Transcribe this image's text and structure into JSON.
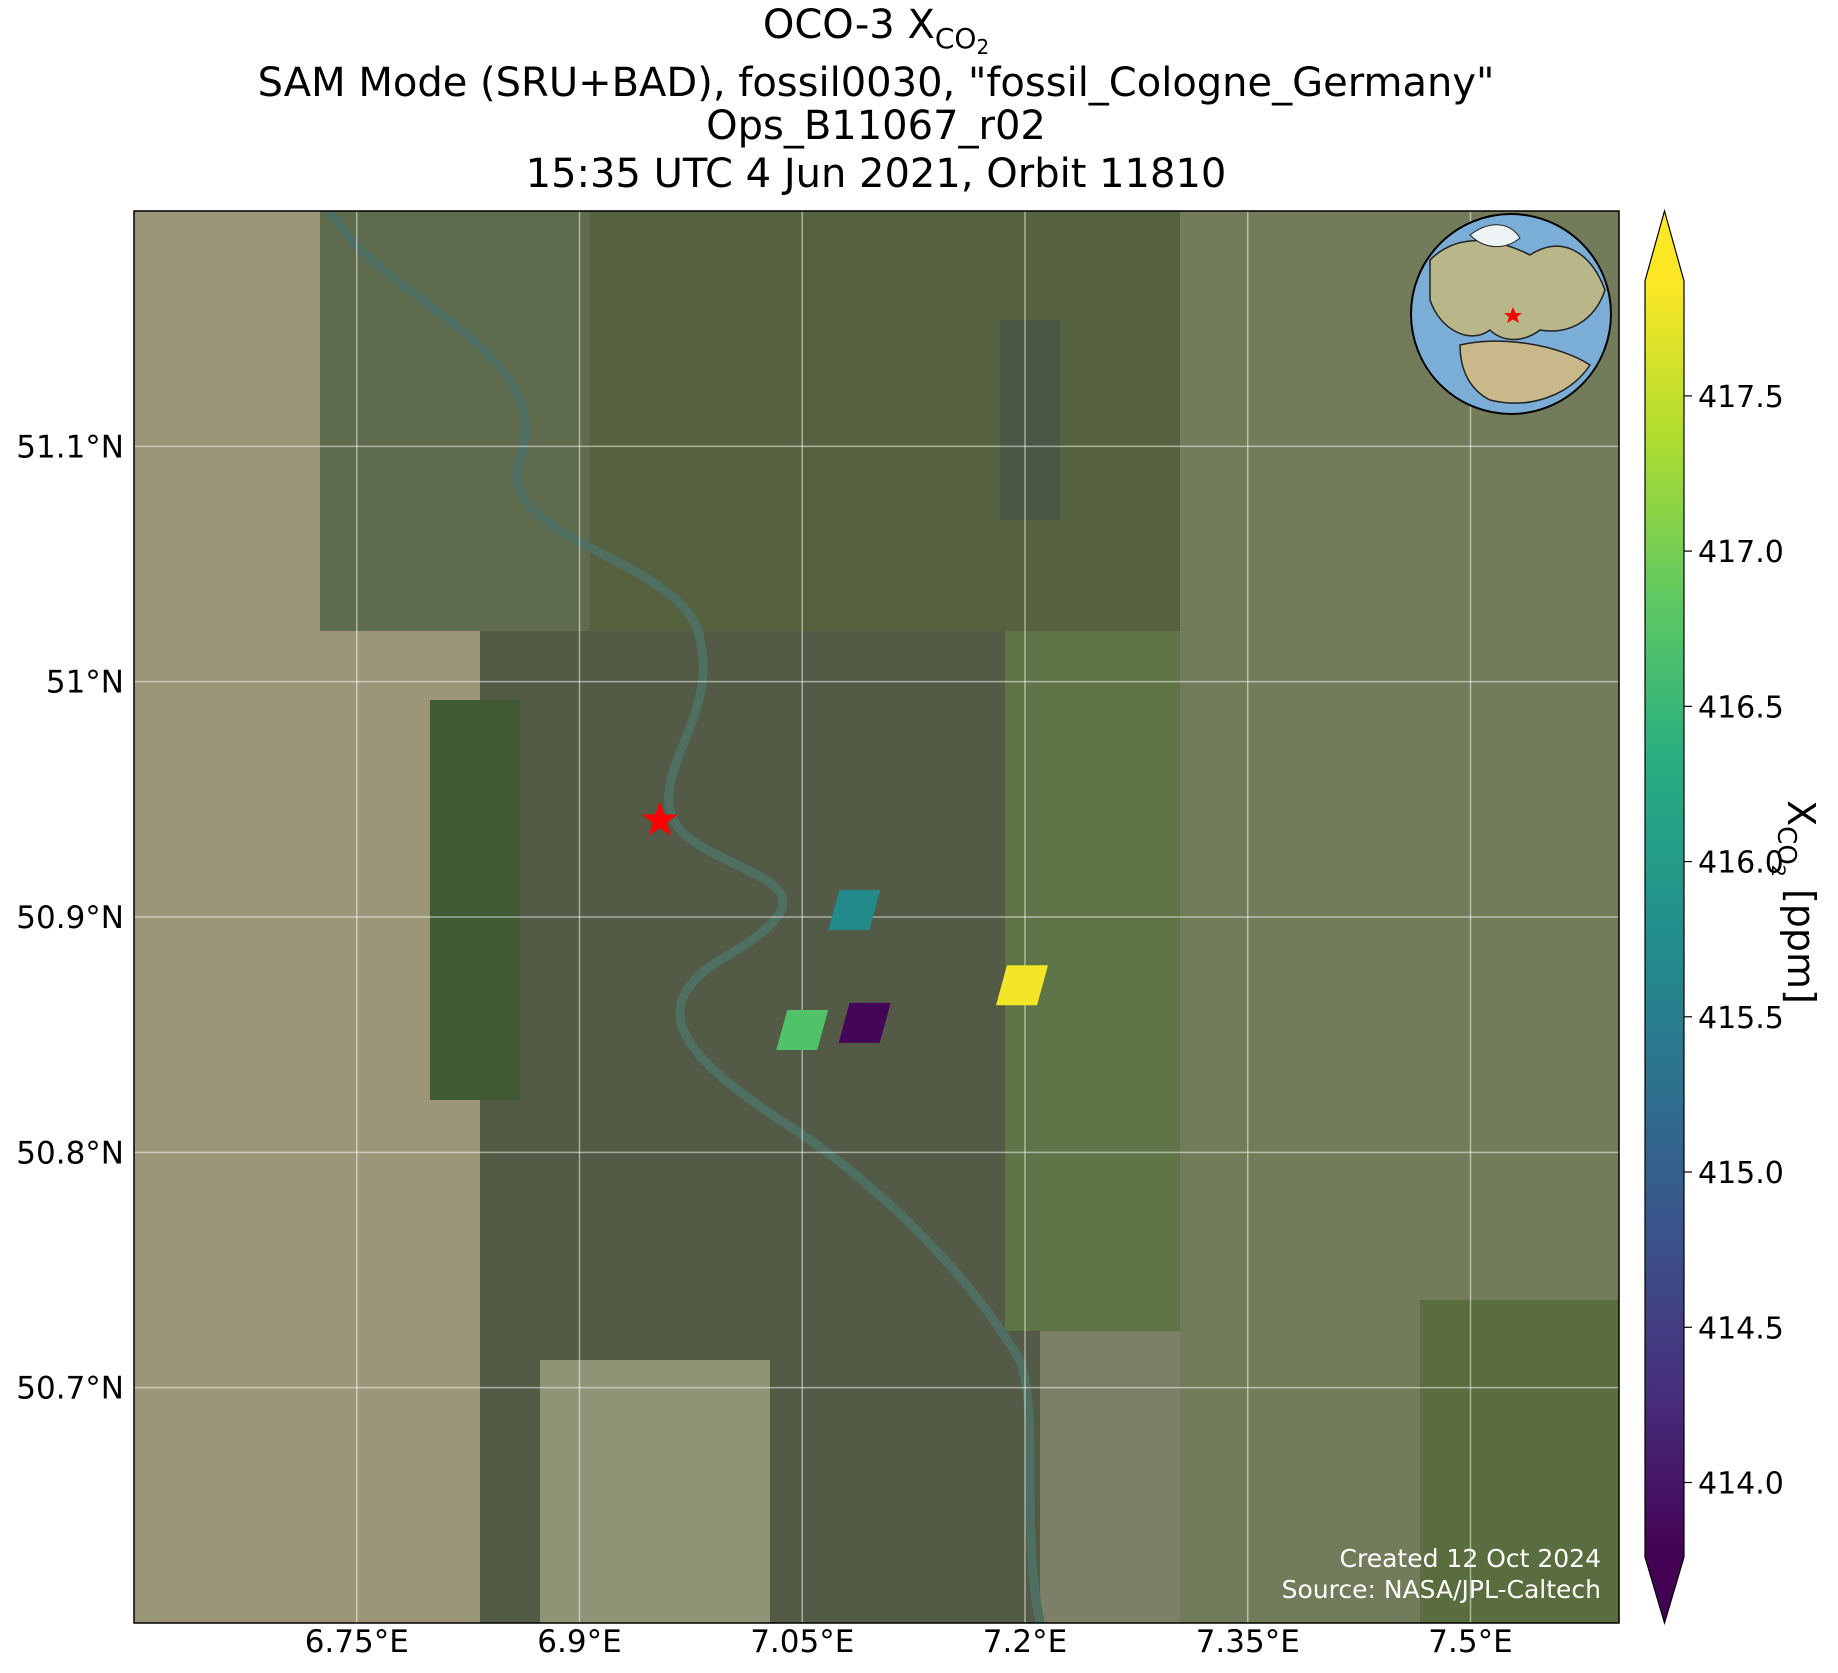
{
  "chart_data": {
    "type": "map",
    "title": {
      "text": "OCO-3 X",
      "subscript": "CO",
      "subsubscript": "2"
    },
    "subtitle_lines": [
      "SAM Mode (SRU+BAD), fossil0030, \"fossil_Cologne_Germany\"",
      "Ops_B11067_r02",
      "15:35 UTC 4 Jun 2021, Orbit 11810"
    ],
    "xlim": [
      6.6,
      7.6
    ],
    "ylim": [
      50.6,
      51.2
    ],
    "xticks": [
      {
        "value": 6.75,
        "label": "6.75°E"
      },
      {
        "value": 6.9,
        "label": "6.9°E"
      },
      {
        "value": 7.05,
        "label": "7.05°E"
      },
      {
        "value": 7.2,
        "label": "7.2°E"
      },
      {
        "value": 7.35,
        "label": "7.35°E"
      },
      {
        "value": 7.5,
        "label": "7.5°E"
      }
    ],
    "yticks": [
      {
        "value": 50.7,
        "label": "50.7°N"
      },
      {
        "value": 50.8,
        "label": "50.8°N"
      },
      {
        "value": 50.9,
        "label": "50.9°N"
      },
      {
        "value": 51,
        "label": "51°N"
      },
      {
        "value": 51.1,
        "label": "51.1°N"
      }
    ],
    "grid": true,
    "x": [
      7.085,
      7.198,
      7.092,
      7.05
    ],
    "y": [
      50.903,
      50.871,
      50.855,
      50.852
    ],
    "values": [
      415.7,
      417.8,
      413.8,
      416.7
    ],
    "target": {
      "lon": 6.954,
      "lat": 50.941
    },
    "colormap": "viridis",
    "clim": [
      413.76,
      417.87
    ],
    "colorbar_extend": "both",
    "colorbar_ticks": [
      {
        "value": 414,
        "label": "414.0"
      },
      414.5,
      {
        "value": 415,
        "label": "415.0"
      },
      415.5,
      {
        "value": 416,
        "label": "416.0"
      },
      416.5,
      {
        "value": 417,
        "label": "417.0"
      },
      417.5
    ],
    "colorbar_label": {
      "symbol": "X",
      "subscript": "CO",
      "subsubscript": "2",
      "unit": " [ppm]"
    },
    "footer": [
      "Created 12 Oct 2024",
      "Source: NASA/JPL-Caltech"
    ]
  }
}
